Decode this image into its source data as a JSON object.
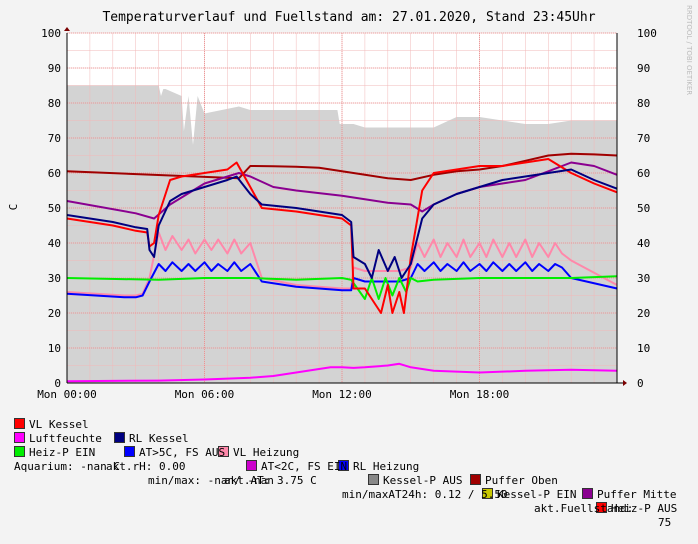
{
  "chart_data": {
    "type": "line",
    "title": "Temperaturverlauf und Fuellstand am: 27.01.2020, Stand 23:45Uhr",
    "ylabel": "C",
    "watermark": "RRDTOOL / TOBI OETIKER",
    "xlim": [
      0,
      24
    ],
    "ylim": [
      0,
      100
    ],
    "x_ticks": [
      {
        "x": 0,
        "label": "Mon 00:00"
      },
      {
        "x": 6,
        "label": "Mon 06:00"
      },
      {
        "x": 12,
        "label": "Mon 12:00"
      },
      {
        "x": 18,
        "label": "Mon 18:00"
      }
    ],
    "y_ticks": [
      0,
      10,
      20,
      30,
      40,
      50,
      60,
      70,
      80,
      90,
      100
    ],
    "grid": true,
    "series": [
      {
        "name": "Aktueller Fuellstand",
        "color": "#d3d3d3",
        "kind": "area",
        "x": [
          0,
          4,
          4.1,
          4.2,
          4.3,
          5,
          5.1,
          5.3,
          5.5,
          5.7,
          6,
          7.5,
          8,
          9,
          10,
          11.8,
          11.9,
          12.5,
          13,
          15,
          16,
          17,
          18,
          19,
          20,
          21,
          22,
          23,
          24
        ],
        "values": [
          85,
          85,
          82,
          84,
          84,
          82,
          72,
          82,
          68,
          82,
          77,
          79,
          78,
          78,
          78,
          78,
          74,
          74,
          73,
          73,
          73,
          76,
          76,
          75,
          74,
          74,
          75,
          75,
          75
        ]
      },
      {
        "name": "Puffer Oben",
        "color": "#a00000",
        "x": [
          0,
          7.5,
          8,
          9,
          10,
          11,
          12,
          13,
          14,
          15,
          16,
          17,
          18,
          19,
          20,
          21,
          22,
          23,
          24
        ],
        "values": [
          60.5,
          58.5,
          62,
          61.9,
          61.8,
          61.5,
          60.5,
          59.5,
          58.5,
          58,
          59.5,
          60.5,
          61,
          62,
          63.5,
          65,
          65.5,
          65.3,
          65
        ]
      },
      {
        "name": "Puffer Mitte",
        "color": "#8a0090",
        "x": [
          0,
          3,
          3.8,
          4.5,
          6,
          7.5,
          8,
          9,
          10,
          12,
          13,
          14,
          15,
          15.5,
          16,
          17,
          18,
          19,
          20,
          21,
          22,
          23,
          24
        ],
        "values": [
          52,
          48.5,
          47,
          51,
          57,
          60,
          59,
          56,
          55,
          53.5,
          52.5,
          51.5,
          51,
          49,
          51,
          54,
          56,
          57,
          58,
          60.5,
          63,
          62,
          59.5
        ]
      },
      {
        "name": "VL Kessel",
        "color": "#ff0000",
        "x": [
          0,
          2,
          3,
          3.5,
          3.6,
          3.8,
          4,
          4.5,
          5,
          6,
          7,
          7.4,
          8,
          8.5,
          10,
          12,
          12.4,
          12.5,
          13,
          13.5,
          13.7,
          14,
          14.2,
          14.5,
          14.7,
          15,
          15.5,
          16,
          17,
          18,
          19,
          20,
          21,
          22,
          23,
          24
        ],
        "values": [
          47,
          45,
          43.5,
          43,
          39,
          40,
          48,
          58,
          59,
          60,
          61,
          63,
          56,
          50,
          49,
          47,
          45,
          27,
          27,
          22,
          20,
          28,
          20,
          26,
          20,
          36,
          55,
          60,
          61,
          62,
          62,
          63,
          64,
          60,
          57,
          54.5
        ]
      },
      {
        "name": "RL Kessel",
        "color": "#000080",
        "x": [
          0,
          2,
          3,
          3.5,
          3.6,
          3.8,
          4,
          4.5,
          5,
          6,
          7,
          7.4,
          8,
          8.5,
          10,
          12,
          12.4,
          12.5,
          13,
          13.3,
          13.6,
          14,
          14.3,
          14.6,
          15,
          15.5,
          16,
          17,
          18,
          19,
          20,
          21,
          22,
          23,
          24
        ],
        "values": [
          48,
          46,
          44.5,
          44,
          38,
          36,
          45,
          52,
          54,
          56,
          58,
          59,
          54,
          51,
          50,
          48,
          46,
          36,
          34,
          30,
          38,
          32,
          36,
          30,
          34,
          47,
          51,
          54,
          56,
          58,
          59,
          60,
          61,
          58,
          55.5
        ]
      },
      {
        "name": "VL Heizung",
        "color": "#ff88aa",
        "x": [
          0,
          2.5,
          3,
          3.3,
          3.6,
          4,
          4.3,
          4.6,
          5,
          5.3,
          5.6,
          6,
          6.3,
          6.6,
          7,
          7.3,
          7.6,
          8,
          8.5,
          10,
          12,
          12.4,
          12.5,
          13,
          14,
          14.5,
          15,
          15.3,
          15.6,
          16,
          16.3,
          16.6,
          17,
          17.3,
          17.6,
          18,
          18.3,
          18.6,
          19,
          19.3,
          19.6,
          20,
          20.3,
          20.6,
          21,
          21.3,
          21.6,
          22,
          24
        ],
        "values": [
          26,
          25,
          25,
          25.5,
          30,
          43,
          38,
          42,
          38,
          41,
          37,
          41,
          38,
          41,
          37,
          41,
          37,
          40,
          30,
          28,
          27,
          27,
          33,
          32,
          32,
          32,
          33,
          40,
          36,
          41,
          36,
          40,
          36,
          41,
          36,
          40,
          36,
          41,
          36,
          40,
          36,
          41,
          36,
          40,
          36,
          40,
          37,
          35,
          28
        ]
      },
      {
        "name": "RL Heizung",
        "color": "#0000ff",
        "x": [
          0,
          2.5,
          3,
          3.3,
          3.6,
          4,
          4.3,
          4.6,
          5,
          5.3,
          5.6,
          6,
          6.3,
          6.6,
          7,
          7.3,
          7.6,
          8,
          8.5,
          10,
          12,
          12.4,
          12.5,
          13,
          14,
          14.5,
          15,
          15.3,
          15.6,
          16,
          16.3,
          16.6,
          17,
          17.3,
          17.6,
          18,
          18.3,
          18.6,
          19,
          19.3,
          19.6,
          20,
          20.3,
          20.6,
          21,
          21.3,
          21.6,
          22,
          24
        ],
        "values": [
          25.5,
          24.5,
          24.5,
          25,
          29,
          34,
          32,
          34.5,
          32,
          34,
          32,
          34.5,
          32,
          34,
          32,
          34.5,
          32,
          34,
          29,
          27.5,
          26.5,
          26.5,
          30,
          29,
          29,
          29,
          30,
          34,
          32,
          34.5,
          32,
          34,
          32,
          34.5,
          32,
          34,
          32,
          34.5,
          32,
          34,
          32,
          34.5,
          32,
          34,
          32,
          34,
          33,
          30,
          27
        ]
      },
      {
        "name": "Heiz-P EIN",
        "color": "#00ee00",
        "x": [
          0,
          4,
          6,
          8,
          10,
          12,
          12.4,
          13,
          13.3,
          13.6,
          13.9,
          14.2,
          14.5,
          14.8,
          15,
          15.3,
          16,
          18,
          20,
          22,
          24
        ],
        "values": [
          30,
          29.5,
          30,
          30,
          29.5,
          30,
          29.5,
          24,
          30,
          24,
          30,
          25,
          30,
          26,
          30,
          29,
          29.5,
          30,
          30,
          30,
          30.5
        ]
      },
      {
        "name": "Luftfeuchte",
        "color": "#ff00ff",
        "x": [
          0,
          2,
          4,
          6,
          8,
          9,
          10,
          11,
          11.5,
          12,
          12.5,
          13,
          14,
          14.5,
          15,
          16,
          18,
          20,
          22,
          24
        ],
        "values": [
          0.5,
          0.6,
          0.7,
          1,
          1.5,
          2,
          3,
          4,
          4.5,
          4.5,
          4.3,
          4.5,
          5,
          5.5,
          4.5,
          3.5,
          3,
          3.5,
          3.8,
          3.5
        ]
      },
      {
        "name": "AT>5C, FS AUS",
        "color": "#0000ff",
        "values": []
      },
      {
        "name": "AT<2C, FS EIN",
        "color": "#cc00cc",
        "values": []
      },
      {
        "name": "Kessel-P AUS",
        "color": "#888888",
        "values": []
      },
      {
        "name": "Kessel-P EIN",
        "color": "#c8c800",
        "values": []
      },
      {
        "name": "Heiz-P AUS",
        "color": "#ff0000",
        "values": []
      }
    ]
  },
  "legend_rows": [
    [
      "VL Kessel",
      "RL Kessel",
      "VL Heizung",
      "RL Heizung",
      "Puffer Oben",
      "Puffer Mitte"
    ],
    [
      "Luftfeuchte",
      "AT>5C, FS AUS",
      "AT<2C, FS EIN",
      "Kessel-P AUS",
      "Kessel-P EIN",
      "Heiz-P AUS"
    ]
  ],
  "legend_colors": {
    "VL Kessel": "#ff0000",
    "RL Kessel": "#000080",
    "VL Heizung": "#ff88aa",
    "RL Heizung": "#0000ff",
    "Puffer Oben": "#a00000",
    "Puffer Mitte": "#8a0090",
    "Luftfeuchte": "#ff00ff",
    "AT>5C, FS AUS": "#0000ff",
    "AT<2C, FS EIN": "#cc00cc",
    "Kessel-P AUS": "#888888",
    "Kessel-P EIN": "#c8c800",
    "Heiz-P AUS": "#ff0000",
    "Heiz-P EIN": "#00ee00"
  },
  "status": {
    "heiz_label": "Heiz-P EIN",
    "rh": "akt.rH: 0.00",
    "at": "akt.AT: 3.75 C",
    "minmax": "min/maxAT24h: 0.12 / 5.50",
    "fuellstand_label": "akt.Fuellstand:",
    "fuellstand_value": "75",
    "aquarium": "Aquarium: -nan C",
    "aquarium_minmax": "min/max: -nan/ -nan"
  }
}
